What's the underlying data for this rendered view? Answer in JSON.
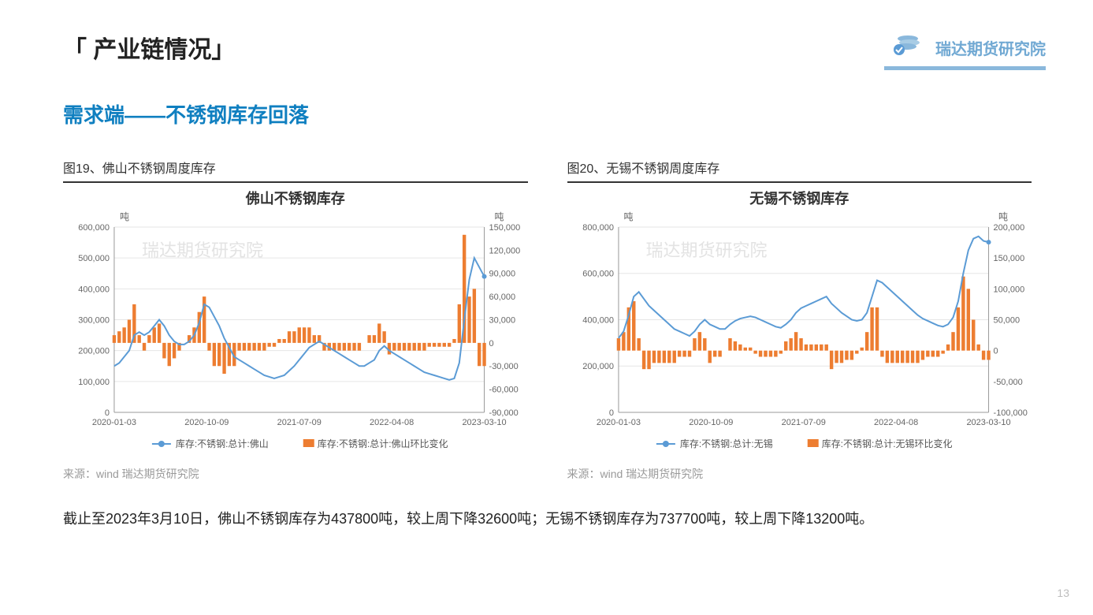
{
  "header": {
    "title": "「 产业链情况」",
    "logo_text": "瑞达期货研究院"
  },
  "subtitle": "需求端——不锈钢库存回落",
  "page_number": "13",
  "body_text": "截止至2023年3月10日，佛山不锈钢库存为437800吨，较上周下降32600吨；无锡不锈钢库存为737700吨，较上周下降13200吨。",
  "watermark_text": "瑞达期货研究院",
  "colors": {
    "line": "#5b9bd5",
    "bar": "#ed7d31",
    "grid": "#e6e6e6",
    "axis": "#999999",
    "accent": "#0f7fc0",
    "logo": "#8ab8dc"
  },
  "chart_left": {
    "caption": "图19、佛山不锈钢周度库存",
    "title": "佛山不锈钢库存",
    "unit_left": "吨",
    "unit_right": "吨",
    "source": "来源：wind   瑞达期货研究院",
    "legend_line": "库存:不锈钢:总计:佛山",
    "legend_bar": "库存:不锈钢:总计:佛山环比变化",
    "x_labels": [
      "2020-01-03",
      "2020-10-09",
      "2021-07-09",
      "2022-04-08",
      "2023-03-10"
    ],
    "y_left": {
      "min": 0,
      "max": 600000,
      "step": 100000
    },
    "y_right": {
      "min": -90000,
      "max": 150000,
      "step": 30000
    },
    "line_data": [
      150,
      160,
      180,
      200,
      250,
      260,
      250,
      260,
      280,
      300,
      280,
      250,
      230,
      220,
      220,
      230,
      250,
      290,
      350,
      340,
      310,
      280,
      240,
      210,
      180,
      170,
      160,
      150,
      140,
      130,
      120,
      115,
      110,
      115,
      120,
      135,
      150,
      170,
      190,
      210,
      220,
      230,
      220,
      210,
      200,
      190,
      180,
      170,
      160,
      150,
      150,
      160,
      170,
      200,
      215,
      200,
      190,
      180,
      170,
      160,
      150,
      140,
      130,
      125,
      120,
      115,
      110,
      105,
      110,
      160,
      300,
      430,
      500,
      470,
      440
    ],
    "bar_data": [
      10,
      15,
      20,
      30,
      50,
      10,
      -10,
      10,
      20,
      25,
      -20,
      -30,
      -20,
      -10,
      0,
      10,
      20,
      40,
      60,
      -10,
      -30,
      -30,
      -40,
      -30,
      -30,
      -10,
      -10,
      -10,
      -10,
      -10,
      -10,
      -5,
      -5,
      5,
      5,
      15,
      15,
      20,
      20,
      20,
      10,
      10,
      -10,
      -10,
      -10,
      -10,
      -10,
      -10,
      -10,
      -10,
      0,
      10,
      10,
      25,
      15,
      -15,
      -10,
      -10,
      -10,
      -10,
      -10,
      -10,
      -10,
      -5,
      -5,
      -5,
      -5,
      -5,
      5,
      50,
      140,
      60,
      70,
      -30,
      -30
    ]
  },
  "chart_right": {
    "caption": "图20、无锡不锈钢周度库存",
    "title": "无锡不锈钢库存",
    "unit_left": "吨",
    "unit_right": "吨",
    "source": "来源：wind   瑞达期货研究院",
    "legend_line": "库存:不锈钢:总计:无锡",
    "legend_bar": "库存:不锈钢:总计:无锡环比变化",
    "x_labels": [
      "2020-01-03",
      "2020-10-09",
      "2021-07-09",
      "2022-04-08",
      "2023-03-10"
    ],
    "y_left": {
      "min": 0,
      "max": 800000,
      "step": 200000
    },
    "y_right": {
      "min": -100000,
      "max": 200000,
      "step": 50000
    },
    "line_data": [
      320,
      350,
      420,
      500,
      520,
      490,
      460,
      440,
      420,
      400,
      380,
      360,
      350,
      340,
      330,
      350,
      380,
      400,
      380,
      370,
      360,
      360,
      380,
      395,
      405,
      410,
      415,
      410,
      400,
      390,
      380,
      370,
      365,
      380,
      400,
      430,
      450,
      460,
      470,
      480,
      490,
      500,
      470,
      450,
      430,
      415,
      400,
      395,
      400,
      430,
      500,
      570,
      560,
      540,
      520,
      500,
      480,
      460,
      440,
      420,
      405,
      395,
      385,
      375,
      370,
      380,
      410,
      480,
      600,
      700,
      750,
      760,
      740,
      735
    ],
    "bar_data": [
      20,
      30,
      70,
      80,
      20,
      -30,
      -30,
      -20,
      -20,
      -20,
      -20,
      -20,
      -10,
      -10,
      -10,
      20,
      30,
      20,
      -20,
      -10,
      -10,
      0,
      20,
      15,
      10,
      5,
      5,
      -5,
      -10,
      -10,
      -10,
      -10,
      -5,
      15,
      20,
      30,
      20,
      10,
      10,
      10,
      10,
      10,
      -30,
      -20,
      -20,
      -15,
      -15,
      -5,
      5,
      30,
      70,
      70,
      -10,
      -20,
      -20,
      -20,
      -20,
      -20,
      -20,
      -20,
      -15,
      -10,
      -10,
      -10,
      -5,
      10,
      30,
      70,
      120,
      100,
      50,
      10,
      -15,
      -15
    ]
  }
}
